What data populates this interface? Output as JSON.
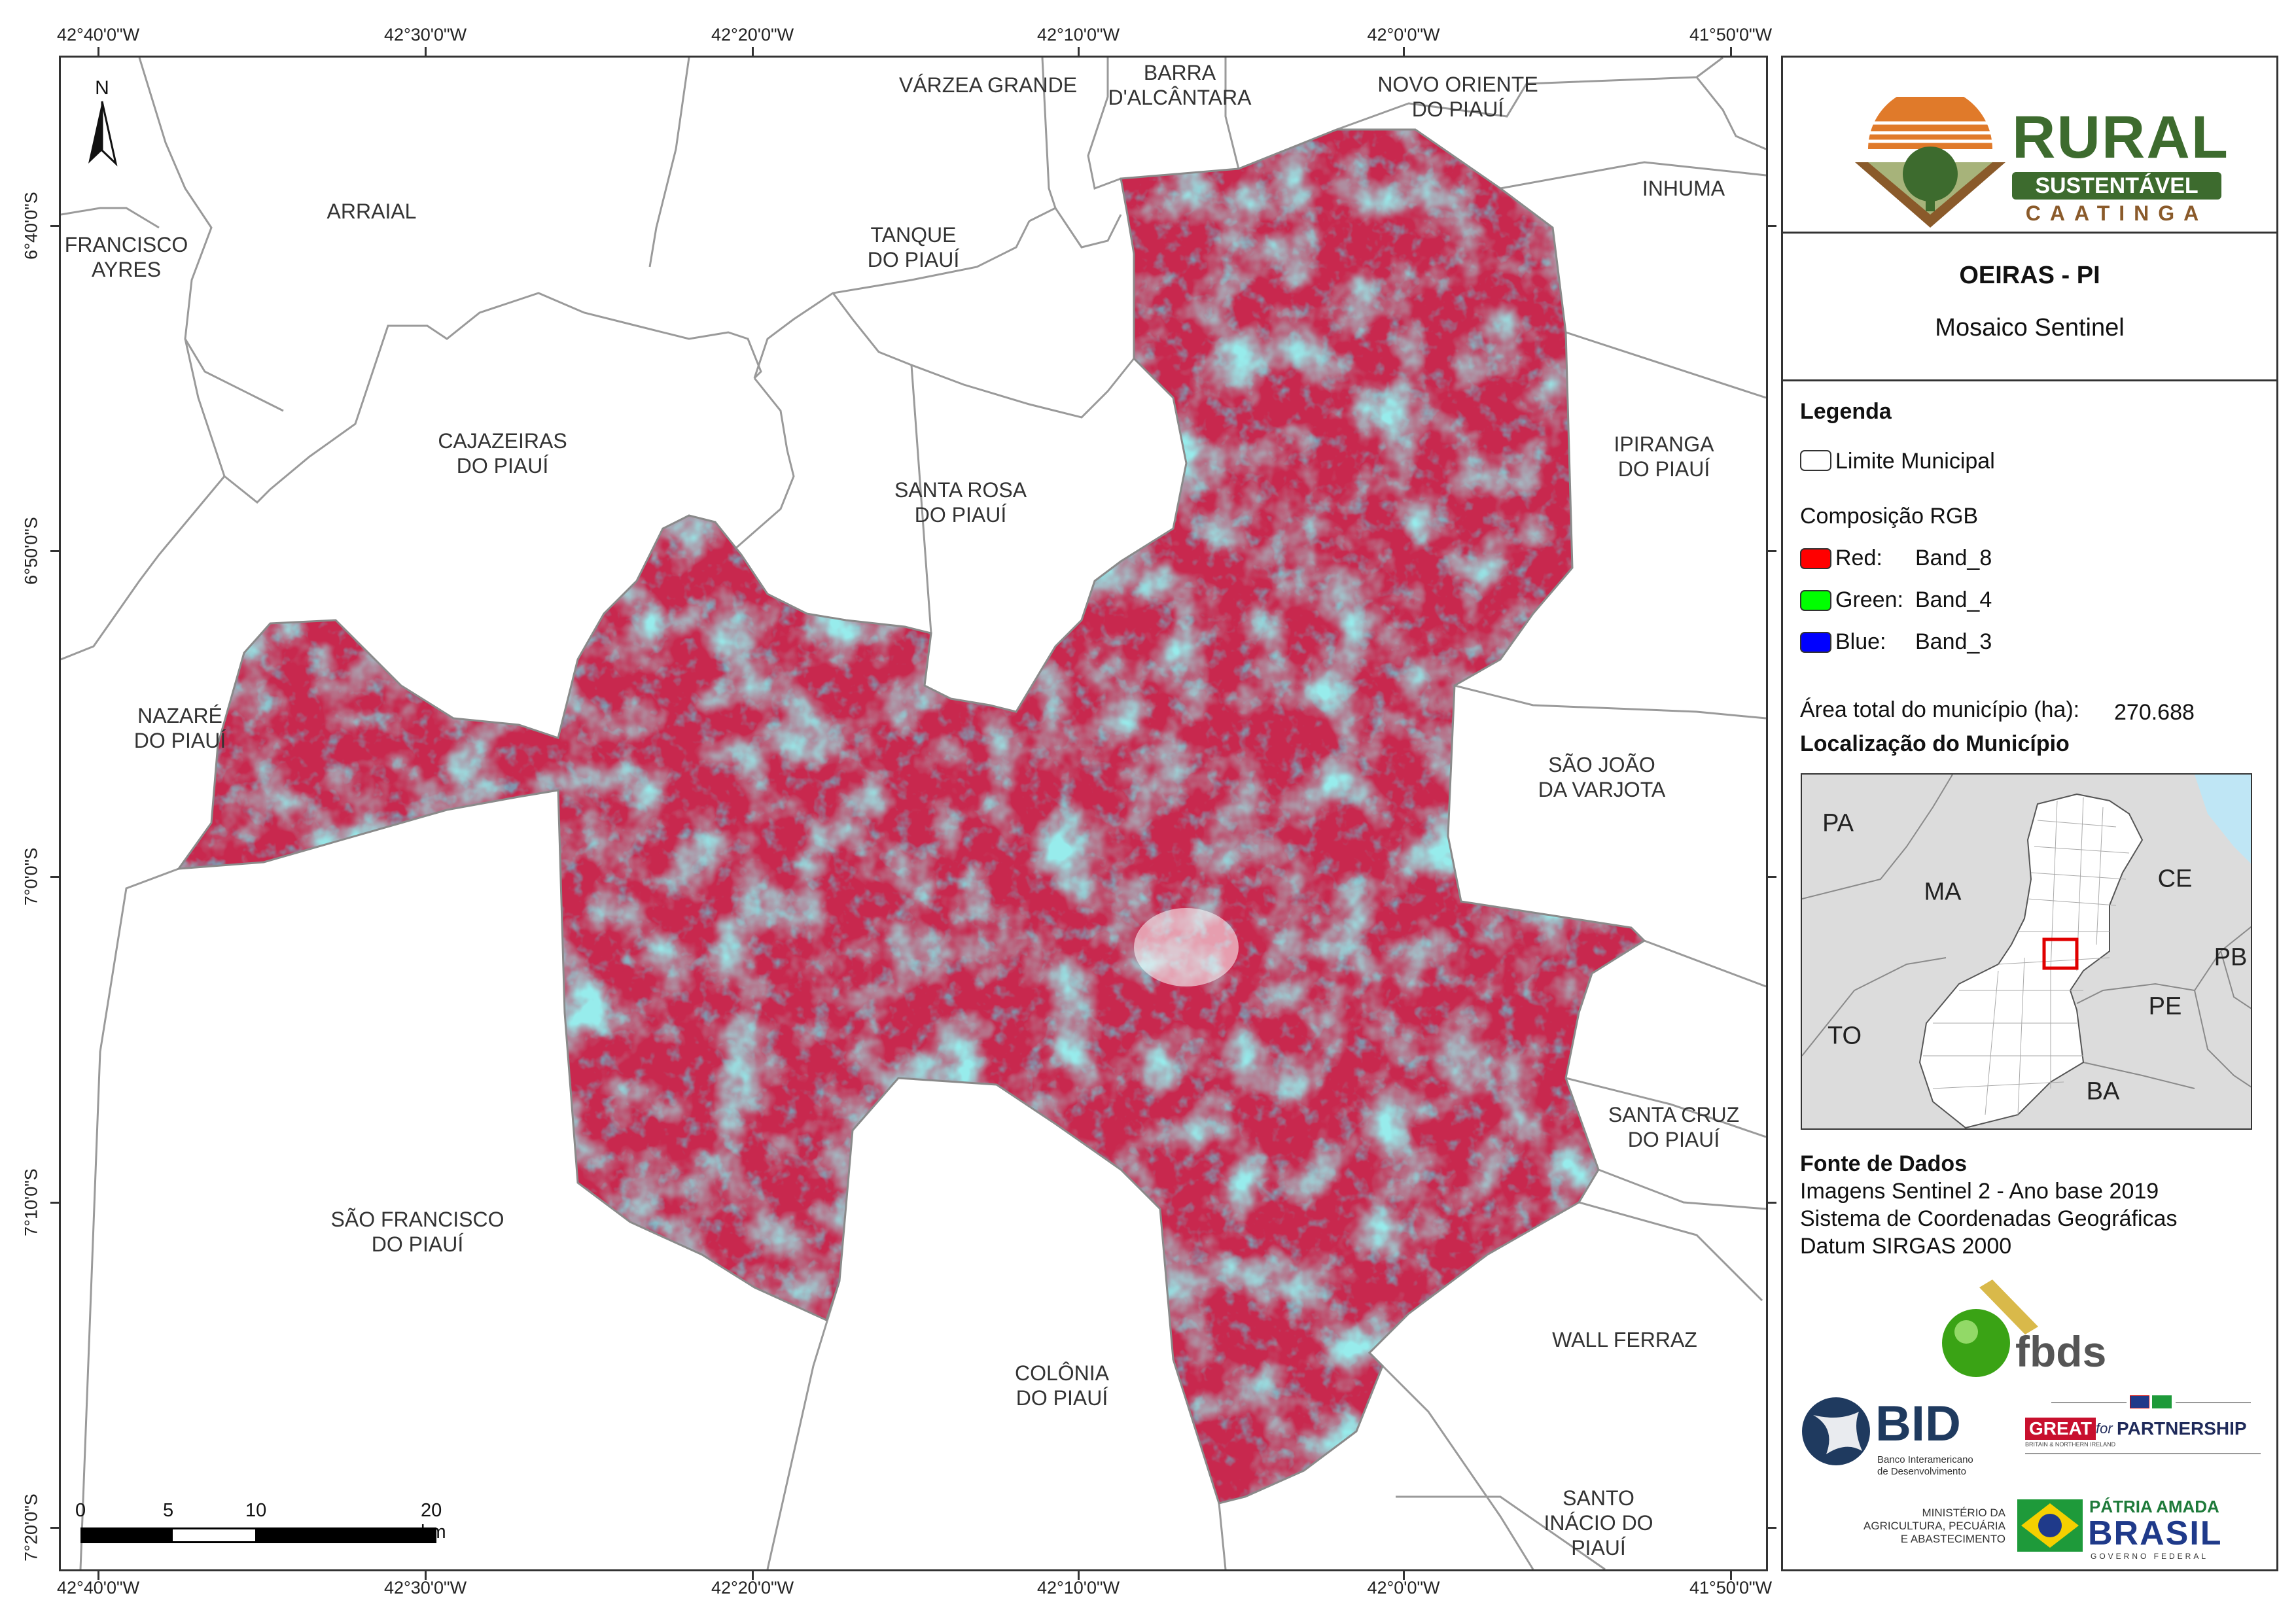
{
  "map": {
    "north_label": "N",
    "longitudes": [
      "42°40'0\"W",
      "42°30'0\"W",
      "42°20'0\"W",
      "42°10'0\"W",
      "42°0'0\"W",
      "41°50'0\"W"
    ],
    "latitudes": [
      "6°40'0\"S",
      "6°50'0\"S",
      "7°0'0\"S",
      "7°10'0\"S",
      "7°20'0\"S"
    ],
    "municipalities": [
      {
        "name": "FRANCISCO\nAYRES"
      },
      {
        "name": "ARRAIAL"
      },
      {
        "name": "VÁRZEA GRANDE"
      },
      {
        "name": "BARRA\nD'ALCÂNTARA"
      },
      {
        "name": "NOVO ORIENTE\nDO PIAUÍ"
      },
      {
        "name": "INHUMA"
      },
      {
        "name": "TANQUE\nDO PIAUÍ"
      },
      {
        "name": "CAJAZEIRAS\nDO PIAUÍ"
      },
      {
        "name": "SANTA ROSA\nDO PIAUÍ"
      },
      {
        "name": "IPIRANGA\nDO PIAUÍ"
      },
      {
        "name": "NAZARÉ\nDO PIAUÍ"
      },
      {
        "name": "SÃO JOÃO\nDA VARJOTA"
      },
      {
        "name": "SANTA CRUZ\nDO PIAUÍ"
      },
      {
        "name": "SÃO FRANCISCO\nDO PIAUÍ"
      },
      {
        "name": "WALL FERRAZ"
      },
      {
        "name": "COLÔNIA\nDO PIAUÍ"
      },
      {
        "name": "SANTO\nINÁCIO DO\nPIAUÍ"
      }
    ],
    "scale_bar": {
      "ticks": [
        "0",
        "5",
        "10",
        "20 km"
      ]
    }
  },
  "panel": {
    "logo": {
      "word1": "RURAL",
      "word2": "SUSTENTÁVEL",
      "word3": "CAATINGA"
    },
    "title": "OEIRAS - PI",
    "subtitle": "Mosaico Sentinel",
    "legend_title": "Legenda",
    "legend_boundary": "Limite Municipal",
    "rgb_title": "Composição RGB",
    "rgb": [
      {
        "channel": "Red:",
        "band": "Band_8",
        "color": "#ff0000"
      },
      {
        "channel": "Green:",
        "band": "Band_4",
        "color": "#00ff00"
      },
      {
        "channel": "Blue:",
        "band": "Band_3",
        "color": "#0000ff"
      }
    ],
    "area_label": "Área total do município (ha):",
    "area_value": "270.688",
    "location_title": "Localização do Município",
    "states": [
      "PA",
      "MA",
      "CE",
      "PB",
      "PE",
      "TO",
      "BA"
    ],
    "source_title": "Fonte de Dados",
    "source_lines": [
      "Imagens Sentinel 2 - Ano base 2019",
      "Sistema de Coordenadas Geográficas",
      "Datum SIRGAS 2000"
    ],
    "fbds": "fbds",
    "bid": "BID",
    "bid_sub": "Banco Interamericano\nde Desenvolvimento",
    "great": "GREAT",
    "great_for": "for",
    "great_partnership": "PARTNERSHIP",
    "great_sub": "BRITAIN & NORTHERN IRELAND",
    "ministry": "MINISTÉRIO DA\nAGRICULTURA, PECUÁRIA\nE ABASTECIMENTO",
    "patria": "PÁTRIA AMADA",
    "brasil": "BRASIL",
    "gov": "GOVERNO FEDERAL"
  },
  "colors": {
    "mosaic_red": "#c8284e",
    "mosaic_cyan": "#4fd6d6",
    "mosaic_dark": "#3a4e6a",
    "logo_green": "#3d6b2e",
    "logo_brown": "#8a5a2a"
  }
}
